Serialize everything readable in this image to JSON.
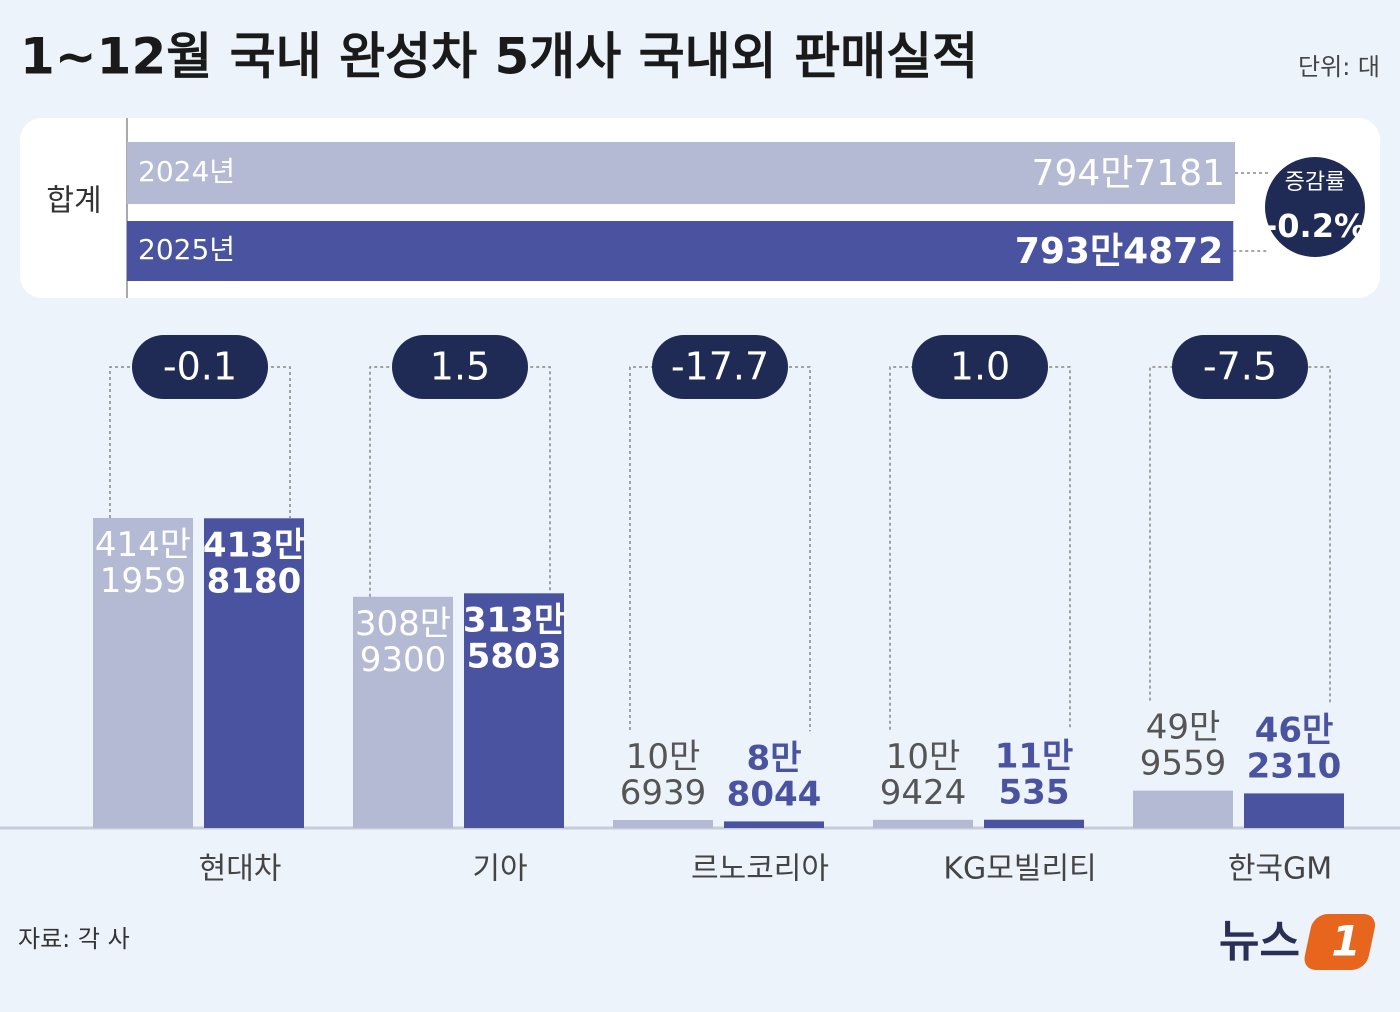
{
  "chart_data": {
    "type": "bar",
    "title": "1~12월 국내 완성차 5개사 국내외 판매실적",
    "unit": "단위: 대",
    "categories": [
      "현대차",
      "기아",
      "르노코리아",
      "KG모빌리티",
      "한국GM"
    ],
    "series": [
      {
        "name": "2024년",
        "color": "#b4bad4",
        "values": [
          4141959,
          3089300,
          106939,
          109424,
          499559
        ],
        "value_labels": [
          "414만\n1959",
          "308만\n9300",
          "10만\n6939",
          "10만\n9424",
          "49만\n9559"
        ]
      },
      {
        "name": "2025년",
        "color": "#4953a0",
        "values": [
          4138180,
          3135803,
          88044,
          110535,
          462310
        ],
        "value_labels": [
          "413만\n8180",
          "313만\n5803",
          "8만\n8044",
          "11만\n535",
          "46만\n2310"
        ]
      }
    ],
    "changes": {
      "values": [
        -0.1,
        1.5,
        -17.7,
        1.0,
        -7.5
      ],
      "labels": [
        "-0.1",
        "1.5",
        "-17.7",
        "1.0",
        "-7.5"
      ]
    },
    "total": {
      "label": "합계",
      "values": [
        7947181,
        7934872
      ],
      "value_labels": [
        "794만7181",
        "793만4872"
      ],
      "change_title": "증감률",
      "change": -0.2,
      "change_label": "-0.2%"
    },
    "source": "자료: 각 사",
    "logo": {
      "text": "뉴스",
      "mark": "1"
    }
  }
}
